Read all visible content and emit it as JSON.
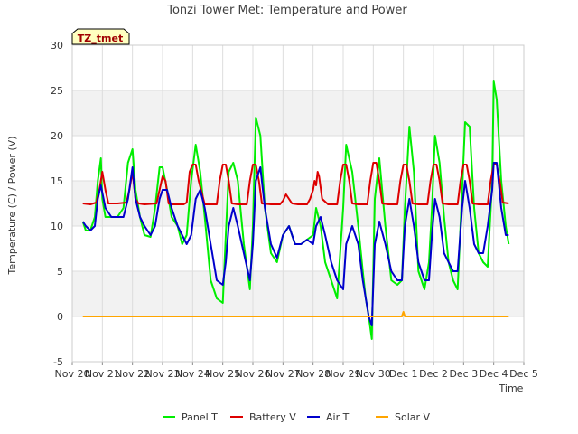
{
  "chart_data": {
    "type": "line",
    "title": "Tonzi Tower Met: Temperature and Power",
    "tag": "TZ_tmet",
    "xlabel": "Time",
    "ylabel": "Temperature (C) / Power (V)",
    "ylim": [
      -5,
      30
    ],
    "xlim": [
      0,
      15
    ],
    "yticks": [
      -5,
      0,
      5,
      10,
      15,
      20,
      25,
      30
    ],
    "xticks": [
      {
        "pos": 0,
        "label": "Nov 20"
      },
      {
        "pos": 1,
        "label": "Nov 21"
      },
      {
        "pos": 2,
        "label": "Nov 22"
      },
      {
        "pos": 3,
        "label": "Nov 23"
      },
      {
        "pos": 4,
        "label": "Nov 24"
      },
      {
        "pos": 5,
        "label": "Nov 25"
      },
      {
        "pos": 6,
        "label": "Nov 26"
      },
      {
        "pos": 7,
        "label": "Nov 27"
      },
      {
        "pos": 8,
        "label": "Nov 28"
      },
      {
        "pos": 9,
        "label": "Nov 29"
      },
      {
        "pos": 10,
        "label": "Nov 30"
      },
      {
        "pos": 11,
        "label": "Dec 1"
      },
      {
        "pos": 12,
        "label": "Dec 2"
      },
      {
        "pos": 13,
        "label": "Dec 3"
      },
      {
        "pos": 14,
        "label": "Dec 4"
      },
      {
        "pos": 15,
        "label": "Dec 5"
      }
    ],
    "grid": true,
    "legend_position": "bottom",
    "series": [
      {
        "name": "Panel T",
        "color": "#00ee00",
        "x": [
          0.35,
          0.45,
          0.6,
          0.75,
          0.85,
          0.95,
          1.0,
          1.1,
          1.3,
          1.5,
          1.7,
          1.85,
          2.0,
          2.1,
          2.25,
          2.4,
          2.6,
          2.75,
          2.9,
          3.0,
          3.15,
          3.3,
          3.5,
          3.65,
          3.8,
          3.95,
          4.1,
          4.25,
          4.4,
          4.6,
          4.8,
          5.0,
          5.1,
          5.2,
          5.35,
          5.5,
          5.7,
          5.9,
          6.0,
          6.1,
          6.25,
          6.4,
          6.6,
          6.8,
          7.0,
          7.2,
          7.4,
          7.6,
          7.8,
          8.0,
          8.1,
          8.25,
          8.4,
          8.6,
          8.8,
          9.0,
          9.1,
          9.3,
          9.5,
          9.65,
          9.75,
          9.85,
          9.95,
          10.05,
          10.2,
          10.4,
          10.6,
          10.8,
          10.95,
          11.05,
          11.2,
          11.35,
          11.5,
          11.7,
          11.85,
          11.95,
          12.05,
          12.2,
          12.35,
          12.5,
          12.65,
          12.8,
          12.95,
          13.05,
          13.2,
          13.35,
          13.5,
          13.65,
          13.8,
          13.95,
          14.0,
          14.1,
          14.25,
          14.4,
          14.5
        ],
        "y": [
          10.5,
          9.5,
          9.5,
          11,
          15,
          17.5,
          13,
          11,
          11,
          11,
          12,
          17,
          18.5,
          14,
          11,
          9,
          8.8,
          12,
          16.5,
          16.5,
          14,
          11,
          10,
          8,
          9,
          15,
          19,
          16,
          11,
          4,
          2,
          1.5,
          9,
          16,
          17,
          15,
          8,
          3,
          10,
          22,
          20,
          12,
          7,
          6,
          9,
          10,
          8,
          8,
          8.5,
          9,
          12,
          10,
          6,
          4,
          2,
          12,
          19,
          16,
          10,
          5,
          2,
          0,
          -2.5,
          13,
          17.5,
          10,
          4,
          3.5,
          4,
          12,
          21,
          16,
          5,
          3,
          6,
          12,
          20,
          17,
          11,
          6,
          4,
          3,
          14,
          21.5,
          21,
          12,
          7,
          6,
          5.5,
          15,
          26,
          24,
          15,
          10,
          8
        ]
      },
      {
        "name": "Battery V",
        "color": "#dd0000",
        "x": [
          0.35,
          0.6,
          0.8,
          0.9,
          1.0,
          1.1,
          1.2,
          1.5,
          1.8,
          1.9,
          2.0,
          2.1,
          2.2,
          2.4,
          2.8,
          2.9,
          3.0,
          3.1,
          3.2,
          3.3,
          3.5,
          3.7,
          3.8,
          3.9,
          4.0,
          4.1,
          4.2,
          4.4,
          4.8,
          4.9,
          5.0,
          5.1,
          5.2,
          5.3,
          5.5,
          5.8,
          5.9,
          6.0,
          6.1,
          6.2,
          6.3,
          6.6,
          6.9,
          7.0,
          7.1,
          7.2,
          7.3,
          7.5,
          7.8,
          7.9,
          8.0,
          8.05,
          8.1,
          8.15,
          8.2,
          8.3,
          8.5,
          8.8,
          8.9,
          9.0,
          9.1,
          9.2,
          9.3,
          9.5,
          9.8,
          9.9,
          10.0,
          10.1,
          10.2,
          10.3,
          10.5,
          10.8,
          10.9,
          11.0,
          11.1,
          11.2,
          11.3,
          11.5,
          11.8,
          11.9,
          12.0,
          12.1,
          12.2,
          12.3,
          12.5,
          12.8,
          12.9,
          13.0,
          13.1,
          13.2,
          13.3,
          13.5,
          13.8,
          13.9,
          14.0,
          14.1,
          14.2,
          14.3,
          14.5
        ],
        "y": [
          12.5,
          12.4,
          12.6,
          14,
          16,
          14,
          12.5,
          12.5,
          12.6,
          14,
          16,
          13,
          12.5,
          12.4,
          12.5,
          14,
          15.5,
          15,
          12.5,
          12.4,
          12.4,
          12.4,
          12.6,
          16,
          16.8,
          16.8,
          15,
          12.4,
          12.4,
          15,
          16.8,
          16.8,
          15,
          12.5,
          12.4,
          12.4,
          15,
          16.8,
          16.8,
          15,
          12.5,
          12.4,
          12.4,
          12.8,
          13.5,
          13,
          12.5,
          12.4,
          12.4,
          13,
          14,
          15,
          14.5,
          16,
          15.5,
          13,
          12.4,
          12.4,
          15,
          16.8,
          16.8,
          15,
          12.5,
          12.4,
          12.4,
          15,
          17,
          17,
          15,
          12.5,
          12.4,
          12.4,
          15,
          16.8,
          16.8,
          15,
          12.5,
          12.4,
          12.4,
          15,
          16.8,
          16.8,
          15,
          12.5,
          12.4,
          12.4,
          15,
          16.8,
          16.8,
          15,
          12.5,
          12.4,
          12.4,
          15,
          16.8,
          16.8,
          15,
          12.6,
          12.5
        ]
      },
      {
        "name": "Air T",
        "color": "#0000cc",
        "x": [
          0.35,
          0.45,
          0.6,
          0.75,
          0.85,
          0.95,
          1.1,
          1.3,
          1.5,
          1.7,
          1.85,
          2.0,
          2.1,
          2.25,
          2.4,
          2.6,
          2.75,
          2.9,
          3.0,
          3.15,
          3.3,
          3.5,
          3.65,
          3.8,
          3.95,
          4.1,
          4.25,
          4.4,
          4.6,
          4.8,
          5.0,
          5.1,
          5.2,
          5.35,
          5.5,
          5.7,
          5.9,
          6.0,
          6.1,
          6.25,
          6.4,
          6.6,
          6.8,
          7.0,
          7.2,
          7.4,
          7.6,
          7.8,
          8.0,
          8.1,
          8.25,
          8.4,
          8.6,
          8.8,
          9.0,
          9.1,
          9.3,
          9.5,
          9.65,
          9.75,
          9.85,
          9.95,
          10.05,
          10.2,
          10.4,
          10.6,
          10.8,
          10.95,
          11.05,
          11.2,
          11.35,
          11.5,
          11.7,
          11.85,
          11.95,
          12.05,
          12.2,
          12.35,
          12.5,
          12.65,
          12.8,
          12.95,
          13.05,
          13.2,
          13.35,
          13.5,
          13.65,
          13.8,
          13.95,
          14.0,
          14.1,
          14.25,
          14.4,
          14.5
        ],
        "y": [
          10.5,
          10,
          9.5,
          10,
          13,
          14.5,
          12,
          11,
          11,
          11,
          13,
          16.5,
          13,
          11,
          10,
          9,
          10,
          13,
          14,
          14,
          12,
          10,
          9,
          8,
          9,
          13,
          14,
          12,
          8,
          4,
          3.5,
          6,
          10,
          12,
          10,
          7,
          4,
          8,
          15,
          16.5,
          12,
          8,
          6.5,
          9,
          10,
          8,
          8,
          8.5,
          8,
          10,
          11,
          9,
          6,
          4,
          3,
          8,
          10,
          8,
          4,
          2,
          0,
          -1,
          8,
          10.5,
          8,
          5,
          4,
          4,
          10,
          13,
          10,
          6,
          4,
          4,
          9,
          13,
          11,
          7,
          6,
          5,
          5,
          12,
          15,
          12,
          8,
          7,
          7,
          10,
          14,
          17,
          17,
          12,
          9,
          9
        ]
      },
      {
        "name": "Solar V",
        "color": "#ffa500",
        "x": [
          0.35,
          10.9,
          10.95,
          11.0,
          11.05,
          14.5
        ],
        "y": [
          0,
          0,
          0,
          0.5,
          0,
          0
        ]
      }
    ]
  }
}
